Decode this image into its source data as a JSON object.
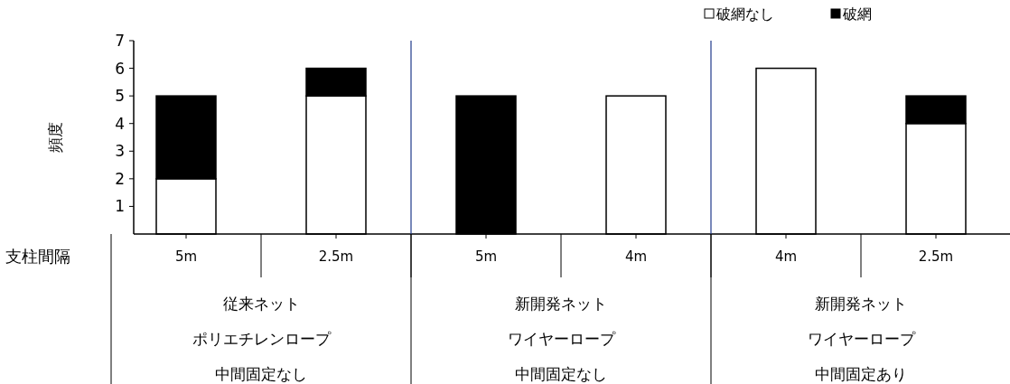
{
  "chart_data": {
    "type": "bar",
    "stacked": true,
    "ylabel": "頻度",
    "xlabel": "支柱間隔",
    "categories": [
      "5m",
      "2.5m",
      "5m",
      "4m",
      "4m",
      "2.5m"
    ],
    "series": [
      {
        "name": "破網なし",
        "color": "#ffffff",
        "values": [
          2,
          5,
          0,
          5,
          6,
          4
        ]
      },
      {
        "name": "破網",
        "color": "#000000",
        "values": [
          3,
          1,
          5,
          0,
          0,
          1
        ]
      }
    ],
    "ylim": [
      0,
      7
    ],
    "yticks": [
      1,
      2,
      3,
      4,
      5,
      6,
      7
    ],
    "legend": "top right",
    "annotations": [
      "従来ネット",
      "ポリエチレンロープ",
      "中間固定なし",
      "新開発ネット",
      "ワイヤーロープ",
      "中間固定なし",
      "新開発ネット",
      "ワイヤーロープ",
      "中間固定あり"
    ]
  }
}
